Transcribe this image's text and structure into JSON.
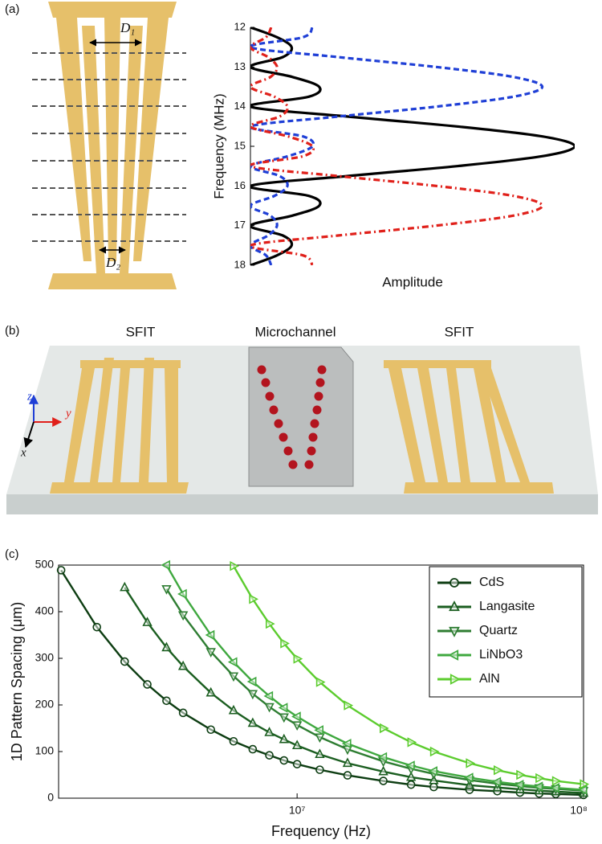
{
  "panel_labels": [
    "(a)",
    "(b)",
    "(c)"
  ],
  "diagram_a": {
    "labels": [
      "D₁",
      "D₂"
    ]
  },
  "diagram_b": {
    "labels": [
      "SFIT",
      "Microchannel",
      "SFIT"
    ],
    "axes": [
      "z",
      "y",
      "x"
    ]
  },
  "chart_data": [
    {
      "type": "line",
      "orientation": "vertical",
      "y_label": "Frequency (MHz)",
      "x_label": "Amplitude",
      "y": [
        12,
        12.25,
        12.5,
        12.75,
        13,
        13.25,
        13.5,
        13.75,
        14,
        14.25,
        14.5,
        14.75,
        15,
        15.25,
        15.5,
        15.75,
        16,
        16.25,
        16.5,
        16.75,
        17,
        17.25,
        17.5,
        17.75,
        18
      ],
      "ylim": [
        12,
        18
      ],
      "y_inverted": true,
      "yticks": [
        12,
        13,
        14,
        15,
        16,
        17,
        18
      ],
      "xlim": [
        0,
        1
      ],
      "series": [
        {
          "color": "#000000",
          "dash": "solid",
          "values": [
            0,
            0.082,
            0.127,
            0.1,
            0,
            0.129,
            0.212,
            0.18,
            0,
            0.3,
            0.637,
            0.9,
            1,
            0.9,
            0.637,
            0.3,
            0,
            0.18,
            0.212,
            0.129,
            0,
            0.1,
            0.127,
            0.082,
            0
          ]
        },
        {
          "color": "#1f3fd6",
          "dash": "dashed",
          "values": [
            0.191,
            0.162,
            0,
            0.27,
            0.573,
            0.81,
            0.9,
            0.81,
            0.573,
            0.27,
            0,
            0.162,
            0.191,
            0.116,
            0,
            0.09,
            0.114,
            0.074,
            0,
            0.062,
            0.082,
            0.054,
            0,
            0.048,
            0.064
          ]
        },
        {
          "color": "#e0201a",
          "dash": "dashdot",
          "values": [
            0.064,
            0.048,
            0,
            0.054,
            0.082,
            0.062,
            0,
            0.074,
            0.114,
            0.09,
            0,
            0.116,
            0.191,
            0.162,
            0,
            0.27,
            0.573,
            0.81,
            0.9,
            0.81,
            0.573,
            0.27,
            0,
            0.162,
            0.191
          ]
        }
      ]
    },
    {
      "type": "line",
      "x_label": "Frequency (Hz)",
      "y_label": "1D Pattern Spacing (μm)",
      "x_scale": "log",
      "x": [
        1500000,
        2000000,
        2500000,
        3000000,
        3500000,
        4000000,
        5000000,
        6000000,
        7000000,
        8000000,
        9000000,
        10000000,
        12000000,
        15000000,
        20000000,
        25000000,
        30000000,
        40000000,
        50000000,
        60000000,
        70000000,
        80000000,
        100000000
      ],
      "xlim": [
        1470000,
        100000000
      ],
      "xticks": [
        {
          "value": 10000000,
          "label": "10⁷"
        },
        {
          "value": 100000000,
          "label": "10⁸"
        }
      ],
      "ylim": [
        0,
        500
      ],
      "yticks": [
        0,
        100,
        200,
        300,
        400,
        500
      ],
      "legend": "upper right",
      "series": [
        {
          "name": "CdS",
          "color": "#0d3d12",
          "marker": "o",
          "values": [
            489,
            367,
            293,
            244,
            209,
            183,
            147,
            122,
            105,
            92,
            81,
            73,
            61,
            49,
            37,
            29,
            24,
            18,
            15,
            12,
            10,
            9,
            7
          ]
        },
        {
          "name": "Langasite",
          "color": "#1b5e20",
          "marker": "^",
          "values": [
            null,
            null,
            452,
            377,
            323,
            283,
            226,
            188,
            161,
            141,
            126,
            113,
            94,
            75,
            57,
            45,
            38,
            28,
            23,
            19,
            16,
            14,
            11
          ]
        },
        {
          "name": "Quartz",
          "color": "#2e7d32",
          "marker": "v",
          "values": [
            null,
            null,
            null,
            null,
            449,
            393,
            314,
            262,
            224,
            196,
            174,
            157,
            131,
            105,
            79,
            63,
            52,
            39,
            31,
            26,
            22,
            20,
            16
          ]
        },
        {
          "name": "LiNbO3",
          "color": "#3fa83f",
          "marker": "<",
          "values": [
            null,
            null,
            null,
            null,
            500,
            438,
            350,
            292,
            250,
            219,
            194,
            175,
            146,
            117,
            88,
            70,
            58,
            44,
            35,
            29,
            25,
            22,
            18
          ]
        },
        {
          "name": "AlN",
          "color": "#5ccc2e",
          "marker": ">",
          "values": [
            null,
            null,
            null,
            null,
            null,
            null,
            null,
            498,
            427,
            374,
            332,
            299,
            249,
            199,
            150,
            120,
            100,
            75,
            60,
            50,
            43,
            37,
            30
          ]
        }
      ]
    }
  ]
}
